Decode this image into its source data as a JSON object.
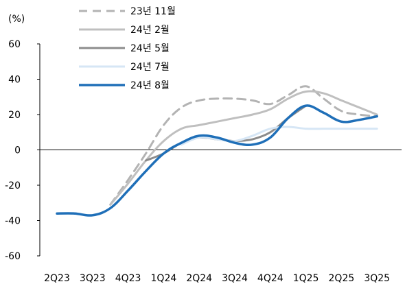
{
  "chart_data": {
    "type": "line",
    "unit_label": "(%)",
    "categories": [
      "2Q23",
      "3Q23",
      "4Q23",
      "1Q24",
      "2Q24",
      "3Q24",
      "4Q24",
      "1Q25",
      "2Q25",
      "3Q25"
    ],
    "ylim": [
      -60,
      60
    ],
    "yticks": [
      -60,
      -40,
      -20,
      0,
      20,
      40,
      60
    ],
    "ytick_labels": [
      "-60",
      "-40",
      "-20",
      "0",
      "20",
      "40",
      "60"
    ],
    "grid": false,
    "legend_position": "top-center",
    "series": [
      {
        "name": "23년 11월",
        "color": "#b3b3b3",
        "dash": true,
        "x": [
          0,
          0.5,
          1,
          1.5,
          2,
          2.5,
          3,
          3.5,
          4,
          4.5,
          5,
          5.5,
          6,
          6.5,
          7,
          7.5,
          8,
          8.5,
          9
        ],
        "values": [
          null,
          null,
          null,
          -31,
          -17,
          -2,
          14,
          24,
          28,
          29,
          29,
          28,
          26,
          31,
          36,
          29,
          22,
          20,
          19
        ]
      },
      {
        "name": "24년 2월",
        "color": "#bfbfbf",
        "dash": false,
        "x": [
          0,
          0.5,
          1,
          1.5,
          2,
          2.5,
          3,
          3.5,
          4,
          4.5,
          5,
          5.5,
          6,
          6.5,
          7,
          7.5,
          8,
          8.5,
          9
        ],
        "values": [
          null,
          null,
          null,
          -31,
          -19,
          -6,
          5,
          12,
          14,
          16,
          18,
          20,
          23,
          29,
          33,
          32,
          28,
          24,
          20
        ]
      },
      {
        "name": "24년 5월",
        "color": "#8c8c8c",
        "dash": false,
        "x": [
          0,
          0.5,
          1,
          1.5,
          2,
          2.5,
          3,
          3.5,
          4,
          4.5,
          5,
          5.5,
          6,
          6.5,
          7
        ],
        "values": [
          null,
          null,
          null,
          null,
          null,
          -6,
          -2,
          4,
          7,
          6,
          5,
          6,
          10,
          18,
          25
        ]
      },
      {
        "name": "24년 7월",
        "color": "#d6e6f5",
        "dash": false,
        "x": [
          0,
          0.5,
          1,
          1.5,
          2,
          2.5,
          3,
          3.5,
          4,
          4.5,
          5,
          5.5,
          6,
          6.5,
          7,
          7.5,
          8,
          8.5,
          9
        ],
        "values": [
          null,
          null,
          null,
          null,
          null,
          null,
          null,
          3,
          7,
          6,
          5,
          8,
          12,
          13,
          12,
          12,
          12,
          12,
          12
        ]
      },
      {
        "name": "24년 8월",
        "color": "#1f6fb8",
        "dash": false,
        "x": [
          0,
          0.5,
          1,
          1.5,
          2,
          2.5,
          3,
          3.5,
          4,
          4.5,
          5,
          5.5,
          6,
          6.5,
          7,
          7.5,
          8,
          8.5,
          9
        ],
        "values": [
          -36,
          -36,
          -37,
          -33,
          -23,
          -12,
          -2,
          4,
          8,
          7,
          4,
          3,
          7,
          18,
          25,
          21,
          16,
          17,
          19
        ]
      }
    ]
  }
}
